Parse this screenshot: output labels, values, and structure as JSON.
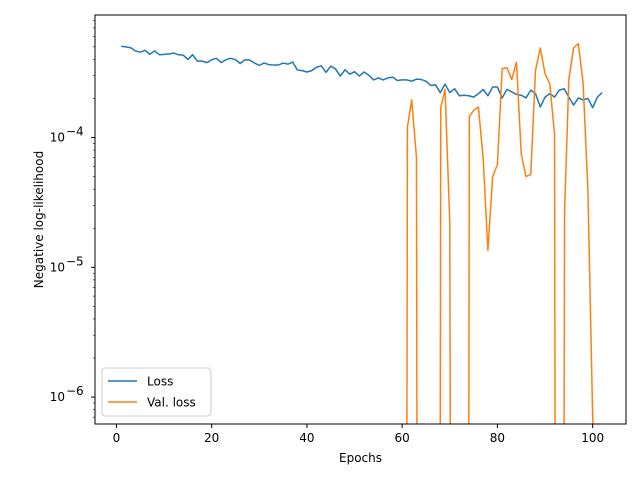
{
  "chart_data": {
    "type": "line",
    "title": "",
    "xlabel": "Epochs",
    "ylabel": "Negative log-likelihood",
    "yscale": "log",
    "xlim": [
      -4.5,
      107
    ],
    "ylim": [
      6.2e-07,
      0.00088
    ],
    "x_ticks": [
      0,
      20,
      40,
      60,
      80,
      100
    ],
    "y_ticks": [
      {
        "value": 1e-06,
        "base": "10",
        "exp": "−6"
      },
      {
        "value": 1e-05,
        "base": "10",
        "exp": "−5"
      },
      {
        "value": 0.0001,
        "base": "10",
        "exp": "−4"
      }
    ],
    "legend_position": "lower-left",
    "grid": false,
    "series": [
      {
        "name": "Loss",
        "color": "#1f77b4",
        "x": [
          1,
          2,
          3,
          4,
          5,
          6,
          7,
          8,
          9,
          10,
          11,
          12,
          13,
          14,
          15,
          16,
          17,
          18,
          19,
          20,
          21,
          22,
          23,
          24,
          25,
          26,
          27,
          28,
          29,
          30,
          31,
          32,
          33,
          34,
          35,
          36,
          37,
          38,
          39,
          40,
          41,
          42,
          43,
          44,
          45,
          46,
          47,
          48,
          49,
          50,
          51,
          52,
          53,
          54,
          55,
          56,
          57,
          58,
          59,
          60,
          61,
          62,
          63,
          64,
          65,
          66,
          67,
          68,
          69,
          70,
          71,
          72,
          73,
          74,
          75,
          76,
          77,
          78,
          79,
          80,
          81,
          82,
          83,
          84,
          85,
          86,
          87,
          88,
          89,
          90,
          91,
          92,
          93,
          94,
          95,
          96,
          97,
          98,
          99,
          100,
          101,
          102
        ],
        "values": [
          0.000505,
          0.0005,
          0.000492,
          0.000465,
          0.000455,
          0.00047,
          0.000438,
          0.000465,
          0.000435,
          0.000438,
          0.00044,
          0.000448,
          0.000435,
          0.000432,
          0.0004,
          0.000435,
          0.000388,
          0.000388,
          0.000378,
          0.000398,
          0.000408,
          0.000378,
          0.000398,
          0.000408,
          0.000398,
          0.000372,
          0.000398,
          0.000395,
          0.000375,
          0.00036,
          0.000375,
          0.000365,
          0.000362,
          0.000362,
          0.000375,
          0.000368,
          0.000382,
          0.000332,
          0.000328,
          0.00032,
          0.000328,
          0.000348,
          0.000358,
          0.000318,
          0.000355,
          0.000338,
          0.000298,
          0.000333,
          0.000308,
          0.000322,
          0.000298,
          0.00032,
          0.000302,
          0.000278,
          0.000288,
          0.000278,
          0.000288,
          0.000292,
          0.000275,
          0.000278,
          0.000278,
          0.000272,
          0.000282,
          0.00028,
          0.000272,
          0.000252,
          0.000255,
          0.000222,
          0.000258,
          0.000222,
          0.000238,
          0.00021,
          0.000212,
          0.00021,
          0.000205,
          0.000218,
          0.000235,
          0.00021,
          0.000245,
          0.000245,
          0.000202,
          0.000235,
          0.000225,
          0.000215,
          0.000212,
          0.000202,
          0.000232,
          0.000218,
          0.000172,
          0.000205,
          0.000218,
          0.000205,
          0.000232,
          0.000238,
          0.000205,
          0.000178,
          0.000202,
          0.000195,
          0.0002,
          0.00017,
          0.000205,
          0.000222
        ]
      },
      {
        "name": "Val. loss",
        "color": "#ff7f0e",
        "x": [
          61,
          61.1,
          62,
          63,
          63.1,
          68,
          68.1,
          69,
          70,
          70.1,
          74,
          74.1,
          75,
          76,
          77,
          78,
          79,
          80,
          81,
          82,
          83,
          84,
          85,
          86,
          87,
          88,
          89,
          90,
          91,
          92,
          92.1,
          94,
          94.1,
          95,
          96,
          97,
          98,
          99,
          100,
          100.1
        ],
        "values": [
          6e-07,
          0.00012,
          0.000195,
          7e-05,
          6e-07,
          6e-07,
          0.00017,
          0.000235,
          2.2e-05,
          6e-07,
          6e-07,
          0.000145,
          0.000162,
          0.000172,
          7e-05,
          1.35e-05,
          5e-05,
          6.2e-05,
          0.00034,
          0.000345,
          0.00028,
          0.00038,
          7.5e-05,
          5e-05,
          5.2e-05,
          0.00033,
          0.00049,
          0.00031,
          0.00026,
          0.000105,
          6e-07,
          6e-07,
          2.7e-05,
          0.00028,
          0.00049,
          0.00053,
          0.00026,
          4e-05,
          7e-07,
          6e-07
        ]
      }
    ]
  }
}
